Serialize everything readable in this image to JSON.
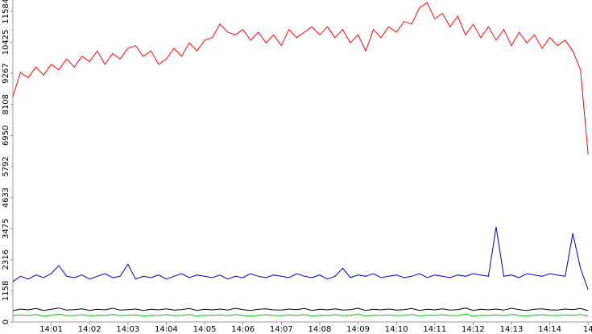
{
  "chart_data": {
    "type": "line",
    "x": [
      0,
      0.2,
      0.4,
      0.6,
      0.8,
      1,
      1.2,
      1.4,
      1.6,
      1.8,
      2,
      2.2,
      2.4,
      2.6,
      2.8,
      3,
      3.2,
      3.4,
      3.6,
      3.8,
      4,
      4.2,
      4.4,
      4.6,
      4.8,
      5,
      5.2,
      5.4,
      5.6,
      5.8,
      6,
      6.2,
      6.4,
      6.6,
      6.8,
      7,
      7.2,
      7.4,
      7.6,
      7.8,
      8,
      8.2,
      8.4,
      8.6,
      8.8,
      9,
      9.2,
      9.4,
      9.6,
      9.8,
      10,
      10.2,
      10.4,
      10.6,
      10.8,
      11,
      11.2,
      11.4,
      11.6,
      11.8,
      12,
      12.2,
      12.4,
      12.6,
      12.8,
      13,
      13.2,
      13.4,
      13.6,
      13.8,
      14,
      14.2,
      14.4,
      14.6,
      14.8,
      15
    ],
    "series": [
      {
        "color": "#ff0000",
        "values": [
          8400,
          9300,
          9100,
          9500,
          9200,
          9600,
          9400,
          9800,
          9500,
          9900,
          9700,
          10100,
          9600,
          10000,
          9800,
          10200,
          10300,
          9900,
          10100,
          9600,
          9800,
          10200,
          9900,
          10400,
          10100,
          10500,
          10600,
          11100,
          10800,
          10700,
          10900,
          10500,
          10800,
          10400,
          10700,
          10300,
          10900,
          10600,
          10800,
          11000,
          10700,
          11000,
          10600,
          10900,
          10400,
          10700,
          10100,
          10900,
          10600,
          11000,
          10800,
          11200,
          11100,
          11700,
          11900,
          11300,
          11500,
          11000,
          11400,
          10700,
          11100,
          10600,
          11000,
          10500,
          10900,
          10300,
          10800,
          10400,
          10700,
          10200,
          10600,
          10300,
          10500,
          10100,
          9400,
          6240
        ]
      },
      {
        "color": "#0000c0",
        "values": [
          1500,
          1700,
          1600,
          1750,
          1650,
          1800,
          2100,
          1700,
          1650,
          1750,
          1600,
          1700,
          1800,
          1650,
          1700,
          2150,
          1600,
          1700,
          1650,
          1750,
          1600,
          1700,
          1800,
          1650,
          1750,
          1700,
          1650,
          1750,
          1600,
          1700,
          1650,
          1800,
          1700,
          1650,
          1750,
          1700,
          1650,
          1800,
          1700,
          1650,
          1750,
          1600,
          1700,
          2000,
          1650,
          1750,
          1700,
          1800,
          1650,
          1700,
          1750,
          1650,
          1700,
          1800,
          1650,
          1750,
          1700,
          1650,
          1750,
          1700,
          1800,
          1750,
          1700,
          3540,
          1700,
          1750,
          1650,
          1800,
          1750,
          1700,
          1800,
          1750,
          1700,
          3300,
          2000,
          1200
        ]
      },
      {
        "color": "#000000",
        "values": [
          420,
          480,
          450,
          500,
          430,
          470,
          520,
          440,
          460,
          490,
          430,
          470,
          450,
          510,
          440,
          460,
          480,
          430,
          470,
          450,
          490,
          440,
          460,
          500,
          430,
          470,
          450,
          480,
          440,
          510,
          460,
          430,
          470,
          490,
          450,
          440,
          480,
          460,
          500,
          430,
          470,
          450,
          490,
          440,
          460,
          510,
          430,
          470,
          450,
          480,
          440,
          460,
          500,
          430,
          470,
          450,
          490,
          440,
          460,
          520,
          430,
          470,
          450,
          480,
          440,
          510,
          460,
          430,
          470,
          490,
          450,
          440,
          480,
          460,
          500,
          420
        ]
      },
      {
        "color": "#00c000",
        "values": [
          230,
          260,
          240,
          280,
          220,
          250,
          290,
          230,
          240,
          270,
          220,
          250,
          240,
          280,
          230,
          250,
          260,
          220,
          250,
          240,
          270,
          230,
          240,
          280,
          220,
          250,
          240,
          260,
          230,
          280,
          240,
          220,
          250,
          270,
          240,
          230,
          260,
          240,
          280,
          220,
          250,
          240,
          270,
          230,
          240,
          290,
          220,
          250,
          240,
          260,
          230,
          240,
          280,
          220,
          250,
          240,
          270,
          230,
          240,
          290,
          220,
          250,
          240,
          260,
          230,
          280,
          240,
          220,
          250,
          270,
          240,
          230,
          260,
          240,
          280,
          210
        ]
      }
    ],
    "xlim": [
      0,
      15.1
    ],
    "xticks": [
      {
        "value": 1,
        "label": "14:01"
      },
      {
        "value": 2,
        "label": "14:02"
      },
      {
        "value": 3,
        "label": "14:03"
      },
      {
        "value": 4,
        "label": "14:04"
      },
      {
        "value": 5,
        "label": "14:05"
      },
      {
        "value": 6,
        "label": "14:06"
      },
      {
        "value": 7,
        "label": "14:07"
      },
      {
        "value": 8,
        "label": "14:08"
      },
      {
        "value": 9,
        "label": "14:09"
      },
      {
        "value": 10,
        "label": "14:10"
      },
      {
        "value": 11,
        "label": "14:11"
      },
      {
        "value": 12,
        "label": "14:12"
      },
      {
        "value": 13,
        "label": "14:13"
      },
      {
        "value": 14,
        "label": "14:14"
      },
      {
        "value": 15,
        "label": "14"
      }
    ],
    "ylim": [
      0,
      12000
    ],
    "yticks": [
      0,
      1158,
      2316,
      3475,
      4633,
      5792,
      6950,
      8108,
      9267,
      10425,
      11584
    ]
  }
}
